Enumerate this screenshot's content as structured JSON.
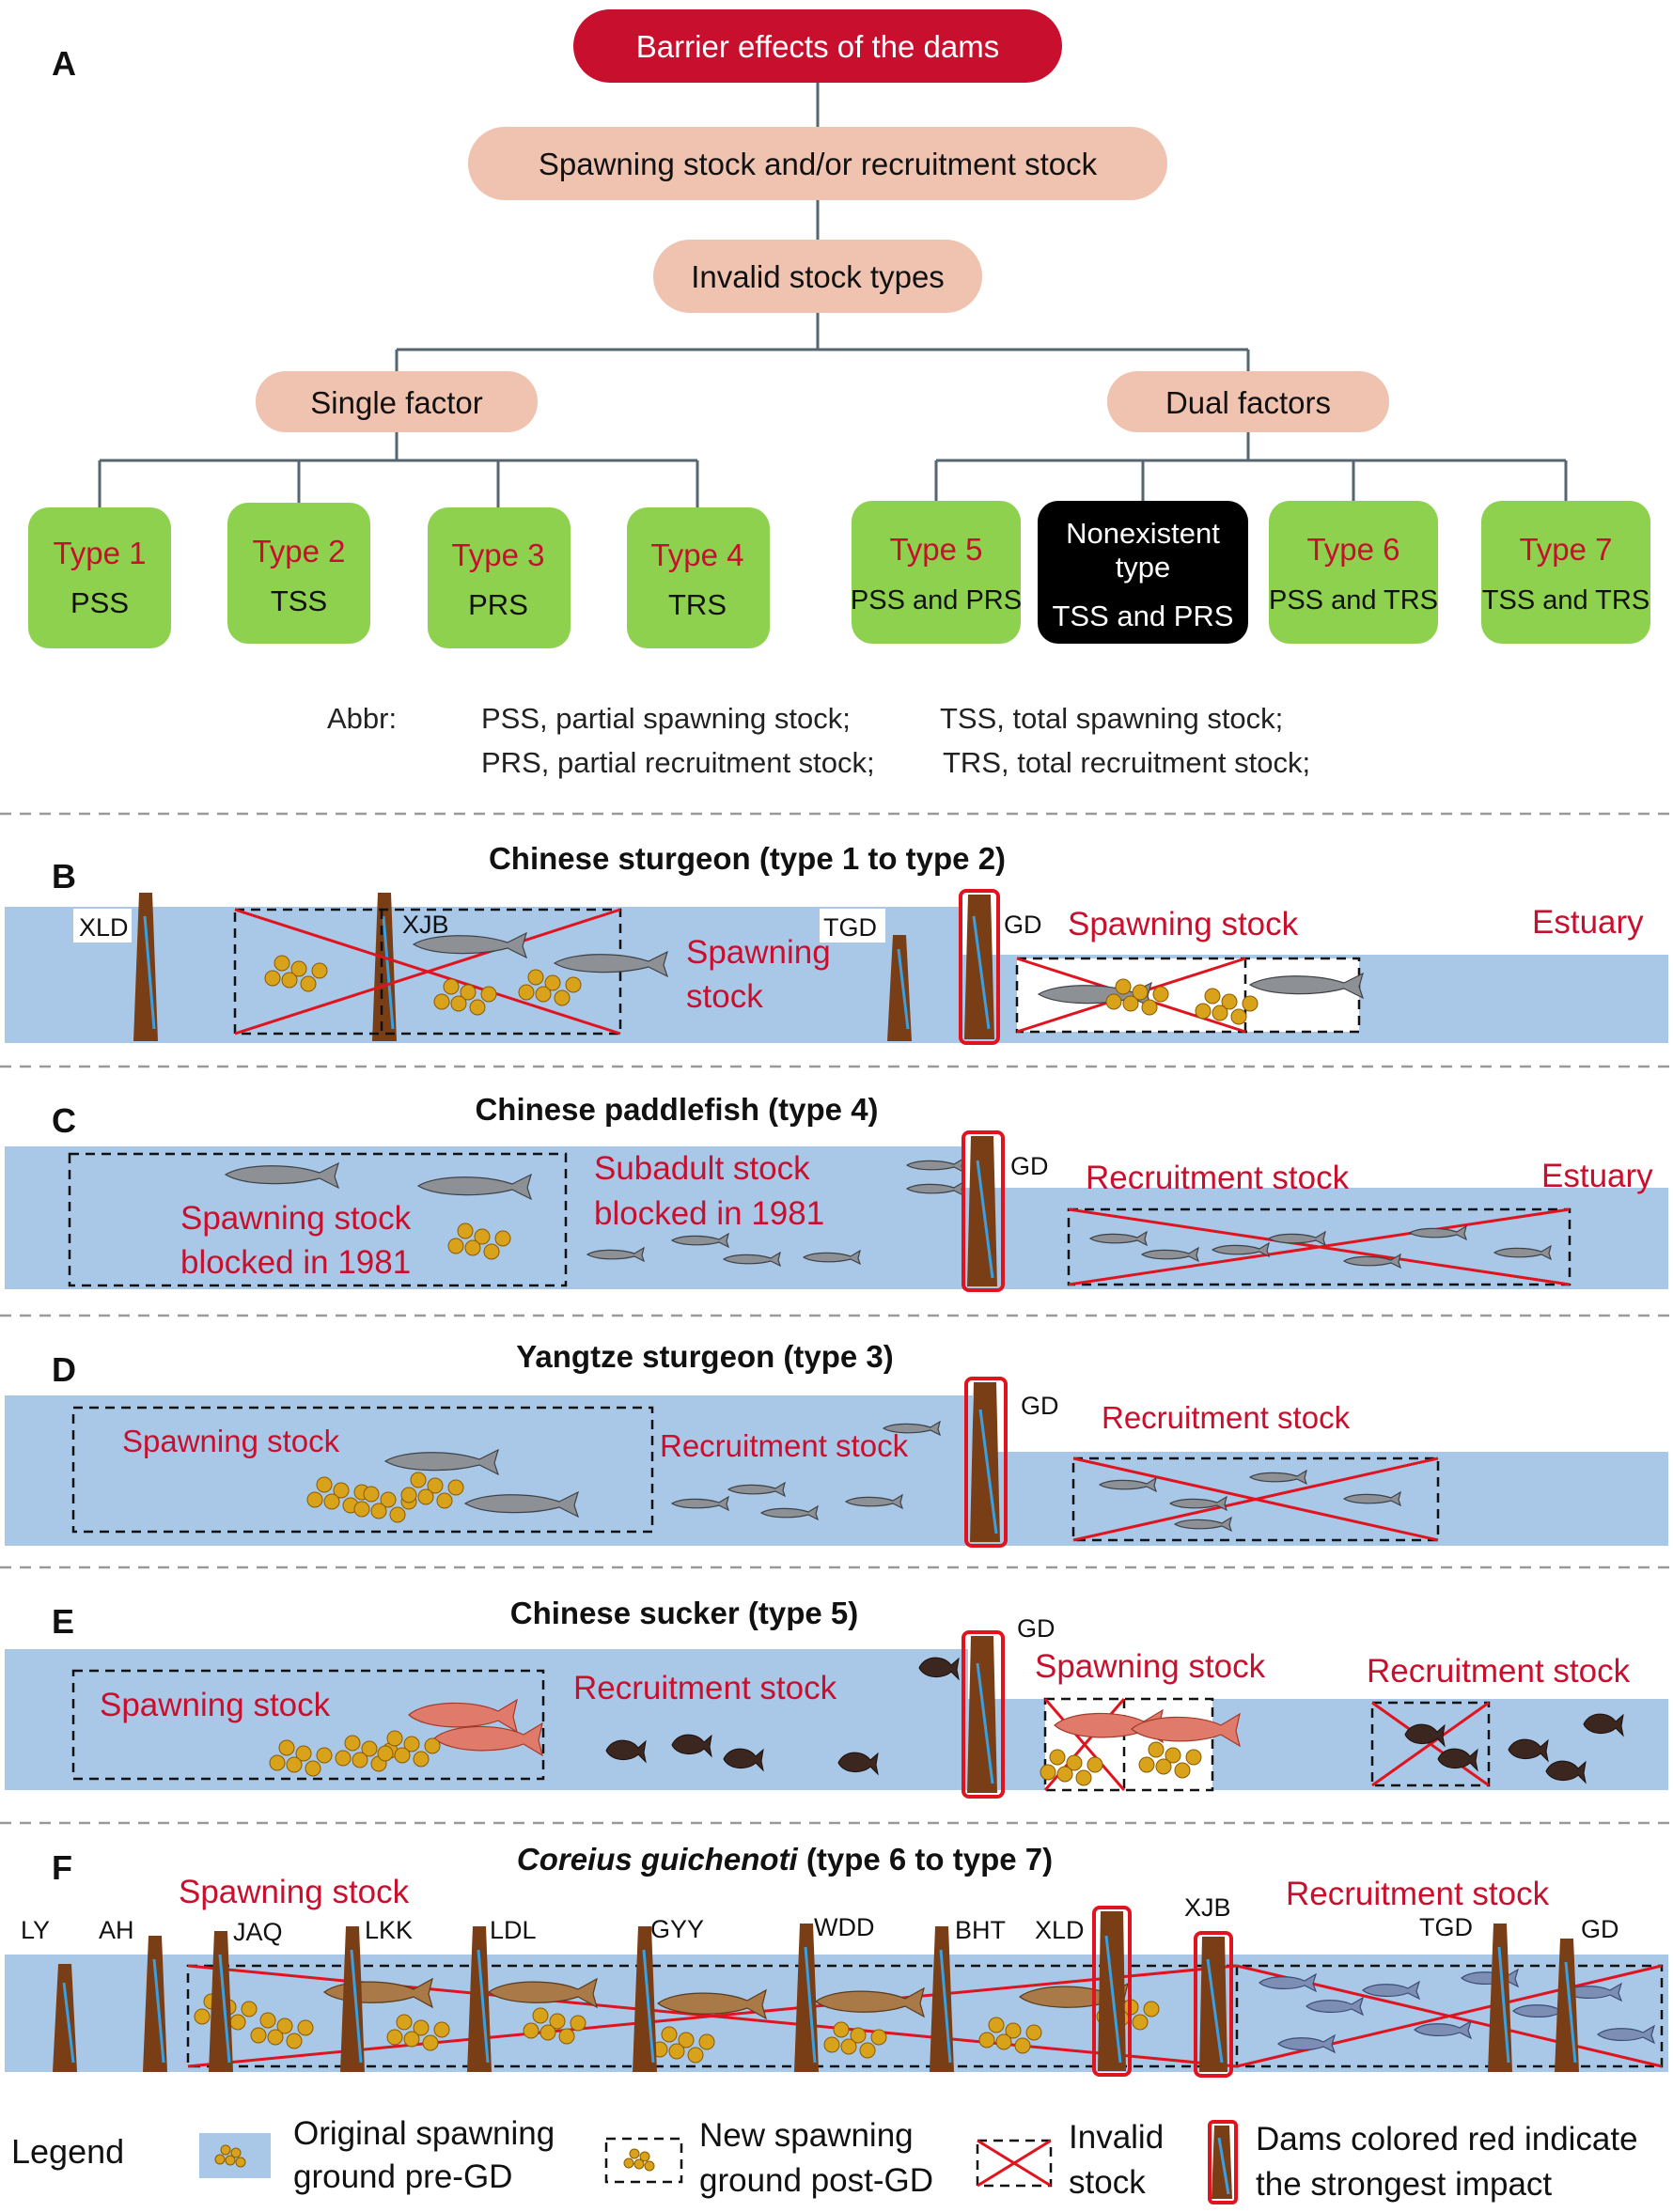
{
  "panel_a": {
    "letter": "A",
    "root": "Barrier effects of the dams",
    "level2": "Spawning stock and/or recruitment stock",
    "level3": "Invalid stock types",
    "single": "Single factor",
    "dual": "Dual factors",
    "types": [
      {
        "name": "Type 1",
        "desc": "PSS"
      },
      {
        "name": "Type 2",
        "desc": "TSS"
      },
      {
        "name": "Type 3",
        "desc": "PRS"
      },
      {
        "name": "Type 4",
        "desc": "TRS"
      },
      {
        "name": "Type 5",
        "desc": "PSS and PRS"
      },
      {
        "name": "Nonexistent",
        "name2": "type",
        "desc": "TSS and PRS"
      },
      {
        "name": "Type 6",
        "desc": "PSS and TRS"
      },
      {
        "name": "Type 7",
        "desc": "TSS and TRS"
      }
    ],
    "abbr_label": "Abbr:",
    "abbr": [
      "PSS, partial spawning stock;",
      "TSS, total spawning stock;",
      "PRS, partial recruitment stock;",
      "TRS, total recruitment stock;"
    ],
    "colors": {
      "root": "#c8102e",
      "beige": "#f0c3b0",
      "green": "#8dd14f",
      "black": "#000000",
      "type_text": "#c8102e"
    }
  },
  "panel_b": {
    "letter": "B",
    "title": "Chinese sturgeon (type 1 to type 2)",
    "dams": [
      "XLD",
      "XJB",
      "TGD",
      "GD"
    ],
    "labels": {
      "spawning1": "Spawning",
      "spawning2": "stock",
      "spawning_post": "Spawning stock",
      "estuary": "Estuary"
    }
  },
  "panel_c": {
    "letter": "C",
    "title": "Chinese paddlefish (type 4)",
    "dams": [
      "GD"
    ],
    "labels": {
      "spawn1": "Spawning stock",
      "spawn2": "blocked in 1981",
      "sub1": "Subadult stock",
      "sub2": "blocked in 1981",
      "recruit": "Recruitment stock",
      "estuary": "Estuary"
    }
  },
  "panel_d": {
    "letter": "D",
    "title": "Yangtze sturgeon (type 3)",
    "dams": [
      "GD"
    ],
    "labels": {
      "spawn": "Spawning stock",
      "recruit1": "Recruitment stock",
      "recruit2": "Recruitment stock"
    }
  },
  "panel_e": {
    "letter": "E",
    "title": "Chinese sucker (type 5)",
    "dams": [
      "GD"
    ],
    "labels": {
      "spawn": "Spawning stock",
      "recruit": "Recruitment stock",
      "spawn_post": "Spawning stock",
      "recruit_post": "Recruitment stock"
    }
  },
  "panel_f": {
    "letter": "F",
    "title_italic": "Coreius guichenoti",
    "title_rest": " (type 6 to type 7)",
    "dams": [
      "LY",
      "AH",
      "JAQ",
      "LKK",
      "LDL",
      "GYY",
      "WDD",
      "BHT",
      "XLD",
      "XJB",
      "TGD",
      "GD"
    ],
    "labels": {
      "spawn": "Spawning stock",
      "recruit": "Recruitment stock"
    }
  },
  "legend": {
    "title": "Legend",
    "items": [
      {
        "line1": "Original spawning",
        "line2": "ground pre-GD"
      },
      {
        "line1": "New spawning",
        "line2": "ground post-GD"
      },
      {
        "line1": "Invalid",
        "line2": "stock"
      },
      {
        "line1": "Dams colored red indicate",
        "line2": "the strongest impact"
      }
    ]
  }
}
